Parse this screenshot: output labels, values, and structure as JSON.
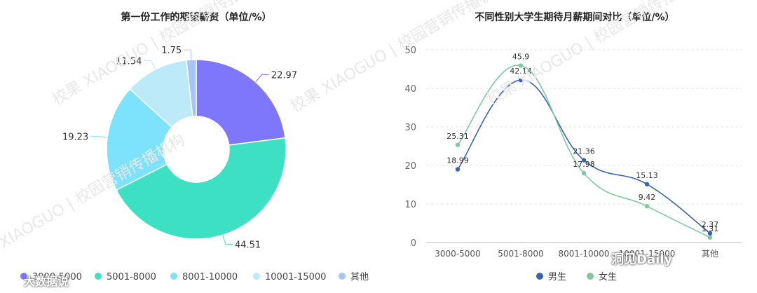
{
  "chart_data": [
    {
      "type": "pie",
      "title": "第一份工作的期望薪资（单位/%）",
      "categories": [
        "3000-5000",
        "5001-8000",
        "8001-10000",
        "10001-15000",
        "其他"
      ],
      "values": [
        22.97,
        44.51,
        19.23,
        11.54,
        1.75
      ],
      "value_labels": [
        "22.97",
        "44.51",
        "19.23",
        "11.54",
        "1.75"
      ],
      "colors": [
        "#7f77fb",
        "#3ee0c4",
        "#7de2fb",
        "#bdeaf9",
        "#a6c4f9"
      ],
      "legend": "bottom",
      "donut": true
    },
    {
      "type": "line",
      "title": "不同性别大学生期待月薪期间对比（单位/%）",
      "categories": [
        "3000-5000",
        "5001-8000",
        "8001-10000",
        "10001-15000",
        "其他"
      ],
      "series": [
        {
          "name": "男生",
          "values": [
            18.99,
            42.14,
            21.36,
            15.13,
            2.37
          ],
          "labels": [
            "18.99",
            "42.14",
            "21.36",
            "15.13",
            "2.37"
          ],
          "color": "#3a63b3"
        },
        {
          "name": "女生",
          "values": [
            25.31,
            45.9,
            17.98,
            9.42,
            1.31
          ],
          "labels": [
            "25.31",
            "45.9",
            "17.98",
            "9.42",
            "1.31"
          ],
          "color": "#7fc8a2"
        }
      ],
      "ylim": [
        0,
        50
      ],
      "yticks": [
        0,
        10,
        20,
        30,
        40,
        50
      ],
      "ytick_labels": [
        "0",
        "10",
        "20",
        "30",
        "40",
        "50"
      ],
      "xtick_labels": [
        "3000-5000",
        "5001-8000",
        "8001-10000",
        "10001-15000",
        "其他"
      ],
      "grid": true,
      "legend": "bottom",
      "smooth": true
    }
  ],
  "watermark": {
    "text": "校果 XIAOGUO | 校园营销传播机构",
    "color": "#e4e4e4"
  },
  "brand": {
    "left": "洞见Daily",
    "bottom_left": "大数据说"
  }
}
